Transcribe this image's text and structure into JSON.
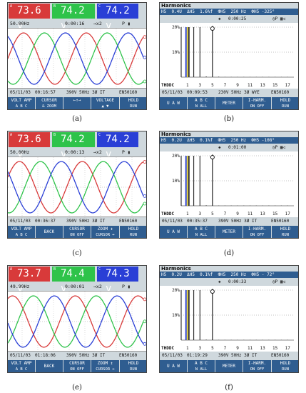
{
  "captions": [
    "(a)",
    "(b)",
    "(c)",
    "(d)",
    "(e)",
    "(f)"
  ],
  "colors": {
    "phase_a": "#d83a3a",
    "phase_b": "#2ec34a",
    "phase_c": "#2a3fd6",
    "key_bg": "#2f5d90",
    "panel_bg": "#cfd8dd"
  },
  "scopes": [
    {
      "id": "a",
      "readings": [
        {
          "ph": "A",
          "val": "73.6 v"
        },
        {
          "ph": "B",
          "val": "74.2 v"
        },
        {
          "ph": "C",
          "val": "74.2 v"
        }
      ],
      "freq": "50.00Hz",
      "timer": "0:00:16",
      "zoom": "→x2",
      "flags": "P ▮",
      "date": "05/11/03",
      "time": "00:16:57",
      "line_spec": "390V 50Hz 3Ø IT",
      "standard": "EN50160",
      "keys": [
        {
          "l1": "VOLT AMP",
          "l2": "A B C"
        },
        {
          "l1": "CURSOR",
          "l2": "& ZOOM"
        },
        {
          "l1": "←↑→",
          "l2": ""
        },
        {
          "l1": "VOLTAGE",
          "l2": "▲ ▼"
        },
        {
          "l1": "HOLD",
          "l2": "RUN"
        }
      ]
    },
    {
      "id": "c",
      "readings": [
        {
          "ph": "A",
          "val": "73.6 v"
        },
        {
          "ph": "B",
          "val": "74.2 v"
        },
        {
          "ph": "C",
          "val": "74.2 v"
        }
      ],
      "freq": "50.00Hz",
      "timer": "0:00:13",
      "zoom": "→x2",
      "flags": "P ▮",
      "date": "05/11/03",
      "time": "00:36:37",
      "line_spec": "390V 50Hz 3Ø IT",
      "standard": "EN50160",
      "keys": [
        {
          "l1": "VOLT AMP",
          "l2": "A B C"
        },
        {
          "l1": "BACK",
          "l2": ""
        },
        {
          "l1": "CURSOR",
          "l2": "ON OFF"
        },
        {
          "l1": "ZOOM ↕",
          "l2": "CURSOR ↔"
        },
        {
          "l1": "HOLD",
          "l2": "RUN"
        }
      ]
    },
    {
      "id": "e",
      "readings": [
        {
          "ph": "A",
          "val": "73.7 v"
        },
        {
          "ph": "B",
          "val": "74.4 v"
        },
        {
          "ph": "C",
          "val": "74.3 v"
        }
      ],
      "freq": "49.99Hz",
      "timer": "0:00:01",
      "zoom": "→x2",
      "flags": "P ▮",
      "date": "05/11/03",
      "time": "01:18:06",
      "line_spec": "390V 50Hz 3Ø IT",
      "standard": "EN50160",
      "keys": [
        {
          "l1": "VOLT AMP",
          "l2": "A B C"
        },
        {
          "l1": "BACK",
          "l2": ""
        },
        {
          "l1": "CURSOR",
          "l2": "ON OFF"
        },
        {
          "l1": "ZOOM ↕",
          "l2": "CURSOR ↔"
        },
        {
          "l1": "HOLD",
          "l2": "RUN"
        }
      ]
    }
  ],
  "harmonics": [
    {
      "id": "b",
      "title": "Harmonics",
      "status_bar": "H5  0.4U  ΔH5  1.6%f  ФH5  250 Hz  ФH5 -325°",
      "timer": "0:00:25",
      "flags": "◷P ▦◁",
      "axis_top": "20%",
      "axis_mid": "10%",
      "orders": [
        "1",
        "3",
        "5",
        "7",
        "9",
        "11",
        "13",
        "15",
        "17"
      ],
      "bars": [
        20.5,
        20.5,
        20.5,
        0.3,
        0.2,
        0.2,
        0.1,
        0.1,
        0.1,
        0.1,
        0.1,
        0.1,
        0.1,
        0.1,
        0.1,
        0.1,
        0.1
      ],
      "date": "05/11/03",
      "time": "00:09:53",
      "line_spec": "230V 50Hz 3Ø WYE",
      "standard": "EN50160",
      "thd_label": "THDDC",
      "keys": [
        {
          "l1": "U A W",
          "l2": ""
        },
        {
          "l1": "A B C",
          "l2": "N ALL"
        },
        {
          "l1": "METER",
          "l2": ""
        },
        {
          "l1": "I-HARM.",
          "l2": "ON OFF"
        },
        {
          "l1": "HOLD",
          "l2": "RUN"
        }
      ]
    },
    {
      "id": "d",
      "title": "Harmonics",
      "status_bar": "H5  0.2U  ΔH5  0.1%f  ФH5  250 Hz  ФH5 -108°",
      "timer": "0:01:00",
      "flags": "◷P ▦◁",
      "axis_top": "20%",
      "axis_mid": "10%",
      "orders": [
        "1",
        "3",
        "5",
        "7",
        "9",
        "11",
        "13",
        "15",
        "17"
      ],
      "bars": [
        20.5,
        20.5,
        20.5,
        0.2,
        0.1,
        0.1,
        0.1,
        0.1,
        0.1,
        0.1,
        0.1,
        0.1,
        0.1,
        0.1,
        0.1,
        0.1,
        0.1
      ],
      "date": "05/11/03",
      "time": "00:35:37",
      "line_spec": "390V 50Hz 3Ø IT",
      "standard": "EN50160",
      "thd_label": "THDDC",
      "keys": [
        {
          "l1": "U A W",
          "l2": ""
        },
        {
          "l1": "A B C",
          "l2": "N ALL"
        },
        {
          "l1": "METER",
          "l2": ""
        },
        {
          "l1": "I-HARM.",
          "l2": "ON OFF"
        },
        {
          "l1": "HOLD",
          "l2": "RUN"
        }
      ]
    },
    {
      "id": "f",
      "title": "Harmonics",
      "status_bar": "H5  0.2U  ΔH5  0.1%f  ФH5  250 Hz  ФH5 - 72°",
      "timer": "0:00:33",
      "flags": "◷P ▦◁",
      "axis_top": "20%",
      "axis_mid": "10%",
      "orders": [
        "1",
        "3",
        "5",
        "7",
        "9",
        "11",
        "13",
        "15",
        "17"
      ],
      "bars": [
        20.5,
        20.5,
        20.5,
        0.2,
        0.1,
        0.1,
        0.1,
        0.1,
        0.1,
        0.1,
        0.1,
        0.1,
        0.1,
        0.1,
        0.1,
        0.1,
        0.1
      ],
      "date": "05/11/03",
      "time": "01:19:29",
      "line_spec": "390V 50Hz 3Ø IT",
      "standard": "EN50160",
      "thd_label": "THDDC",
      "keys": [
        {
          "l1": "U A W",
          "l2": ""
        },
        {
          "l1": "A B C",
          "l2": "N ALL"
        },
        {
          "l1": "METER",
          "l2": ""
        },
        {
          "l1": "I-HARM.",
          "l2": "ON OFF"
        },
        {
          "l1": "HOLD",
          "l2": "RUN"
        }
      ]
    }
  ]
}
